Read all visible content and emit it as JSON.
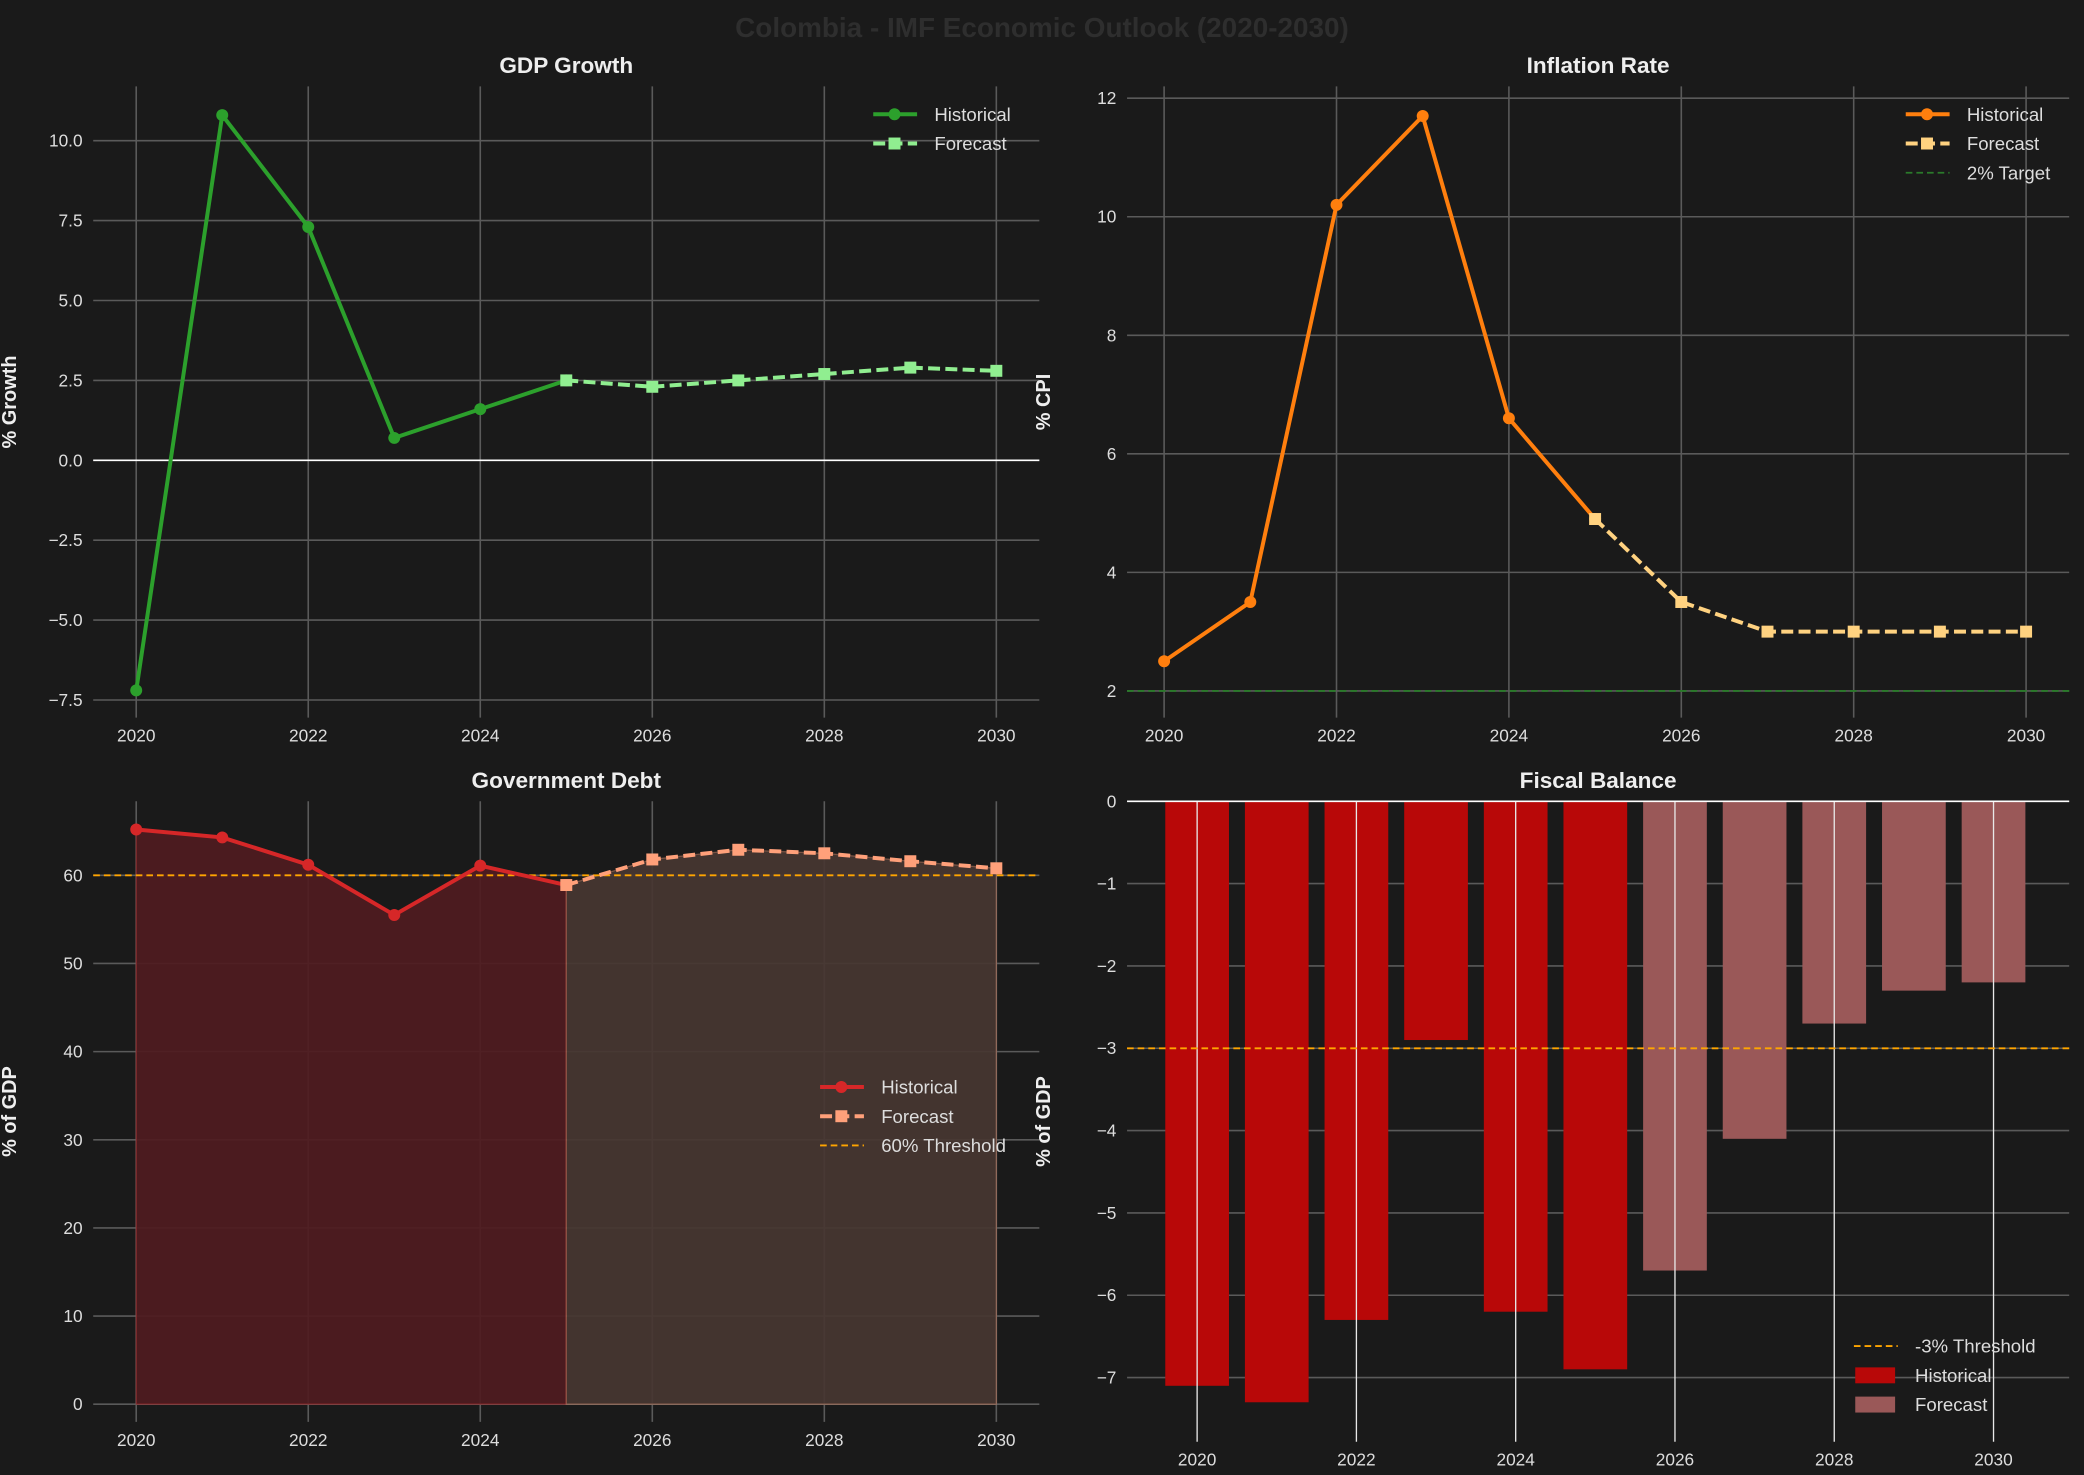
{
  "figure": {
    "title": "Colombia - IMF Economic Outlook (2020-2030)",
    "background": "#1a1a1a"
  },
  "chart_data": [
    {
      "id": "gdp",
      "type": "line",
      "title": "GDP Growth",
      "xlabel": "",
      "ylabel": "% Growth",
      "xlim": [
        2019.5,
        2030.5
      ],
      "ylim": [
        -8.05,
        11.7
      ],
      "xticks": [
        2020,
        2022,
        2024,
        2026,
        2028,
        2030
      ],
      "yticks": [
        -7.5,
        -5.0,
        -2.5,
        0.0,
        2.5,
        5.0,
        7.5,
        10.0
      ],
      "ytick_labels": [
        "−7.5",
        "−5.0",
        "−2.5",
        "0.0",
        "2.5",
        "5.0",
        "7.5",
        "10.0"
      ],
      "grid": true,
      "legend": "top-right",
      "reference_lines": [
        {
          "y": 0,
          "color": "#ffffff",
          "style": "solid",
          "label": ""
        }
      ],
      "series": [
        {
          "name": "Historical",
          "color": "#2ca02c",
          "style": "solid",
          "marker": "circle",
          "x": [
            2020,
            2021,
            2022,
            2023,
            2024,
            2025
          ],
          "y": [
            -7.2,
            10.8,
            7.3,
            0.7,
            1.6,
            2.5
          ]
        },
        {
          "name": "Forecast",
          "color": "#90ee90",
          "style": "dashed",
          "marker": "square",
          "x": [
            2025,
            2026,
            2027,
            2028,
            2029,
            2030
          ],
          "y": [
            2.5,
            2.3,
            2.5,
            2.7,
            2.9,
            2.8
          ]
        }
      ]
    },
    {
      "id": "inflation",
      "type": "line",
      "title": "Inflation Rate",
      "xlabel": "",
      "ylabel": "% CPI",
      "xlim": [
        2019.57,
        2030.5
      ],
      "ylim": [
        1.55,
        12.2
      ],
      "xticks": [
        2020,
        2022,
        2024,
        2026,
        2028,
        2030
      ],
      "yticks": [
        2,
        4,
        6,
        8,
        10,
        12
      ],
      "ytick_labels": [
        "2",
        "4",
        "6",
        "8",
        "10",
        "12"
      ],
      "grid": true,
      "legend": "top-right",
      "reference_lines": [
        {
          "y": 2,
          "color": "#2a7a2a",
          "style": "dashed",
          "label": "2% Target"
        }
      ],
      "series": [
        {
          "name": "Historical",
          "color": "#ff7f0e",
          "style": "solid",
          "marker": "circle",
          "x": [
            2020,
            2021,
            2022,
            2023,
            2024,
            2025
          ],
          "y": [
            2.5,
            3.5,
            10.2,
            11.7,
            6.6,
            4.9
          ]
        },
        {
          "name": "Forecast",
          "color": "#ffd280",
          "style": "dashed",
          "marker": "square",
          "x": [
            2025,
            2026,
            2027,
            2028,
            2029,
            2030
          ],
          "y": [
            4.9,
            3.5,
            3.0,
            3.0,
            3.0,
            3.0
          ]
        }
      ]
    },
    {
      "id": "debt",
      "type": "area",
      "title": "Government Debt",
      "xlabel": "",
      "ylabel": "% of GDP",
      "xlim": [
        2019.5,
        2030.5
      ],
      "ylim": [
        -2.0,
        68.4
      ],
      "xticks": [
        2020,
        2022,
        2024,
        2026,
        2028,
        2030
      ],
      "yticks": [
        0,
        10,
        20,
        30,
        40,
        50,
        60
      ],
      "ytick_labels": [
        "0",
        "10",
        "20",
        "30",
        "40",
        "50",
        "60"
      ],
      "grid": true,
      "legend": "center-right",
      "reference_lines": [
        {
          "y": 60,
          "color": "#ffa500",
          "style": "dashed",
          "label": "60% Threshold"
        }
      ],
      "series": [
        {
          "name": "Historical",
          "color": "#d62728",
          "fill": "#4f1b1f",
          "style": "solid",
          "marker": "circle",
          "x": [
            2020,
            2021,
            2022,
            2023,
            2024,
            2025
          ],
          "y": [
            65.2,
            64.3,
            61.2,
            55.5,
            61.1,
            58.9
          ]
        },
        {
          "name": "Forecast",
          "color": "#ffa07a",
          "fill": "#463631",
          "style": "dashed",
          "marker": "square",
          "x": [
            2025,
            2026,
            2027,
            2028,
            2029,
            2030
          ],
          "y": [
            58.9,
            61.8,
            62.9,
            62.5,
            61.6,
            60.8
          ]
        }
      ]
    },
    {
      "id": "fiscal",
      "type": "bar",
      "title": "Fiscal Balance",
      "xlabel": "",
      "ylabel": "% of GDP",
      "xlim": [
        2019.12,
        2030.95
      ],
      "ylim": [
        -7.78,
        0
      ],
      "xticks": [
        2020,
        2022,
        2024,
        2026,
        2028,
        2030
      ],
      "yticks": [
        -7,
        -6,
        -5,
        -4,
        -3,
        -2,
        -1,
        0
      ],
      "ytick_labels": [
        "−7",
        "−6",
        "−5",
        "−4",
        "−3",
        "−2",
        "−1",
        "0"
      ],
      "grid": true,
      "legend": "bottom-right",
      "reference_lines": [
        {
          "y": -3,
          "color": "#ffa500",
          "style": "dashed",
          "label": "-3% Threshold"
        }
      ],
      "series": [
        {
          "name": "Historical",
          "color": "#b80808",
          "x": [
            2020,
            2021,
            2022,
            2023,
            2024,
            2025
          ],
          "y": [
            -7.1,
            -7.3,
            -6.3,
            -2.9,
            -6.2,
            -6.9
          ]
        },
        {
          "name": "Forecast",
          "color": "#9a5858",
          "x": [
            2026,
            2027,
            2028,
            2029,
            2030
          ],
          "y": [
            -5.7,
            -4.1,
            -2.7,
            -2.3,
            -2.2
          ]
        }
      ]
    }
  ]
}
